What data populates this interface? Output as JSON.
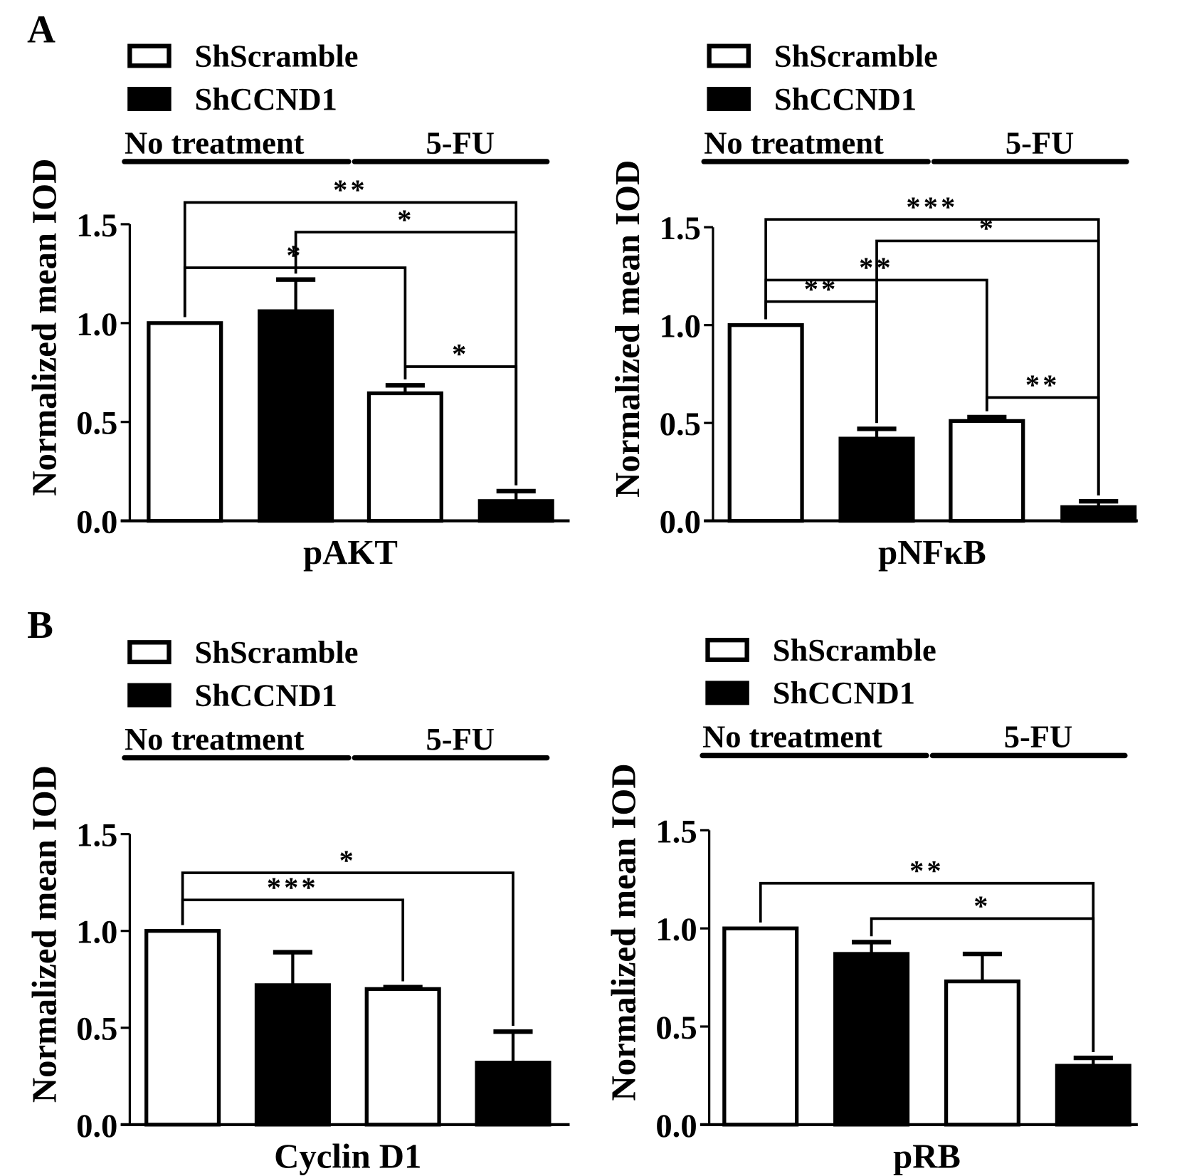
{
  "panel_labels": [
    "A",
    "B"
  ],
  "chart_data": [
    {
      "type": "bar",
      "panel": "A",
      "title": "",
      "xlabel": "pAKT",
      "ylabel": "Normalized mean IOD",
      "ylim": [
        0,
        1.5
      ],
      "yticks": [
        "0.0",
        "0.5",
        "1.0",
        "1.5"
      ],
      "legend": [
        "ShScramble",
        "ShCCND1"
      ],
      "legend_position": "top-left",
      "groups": [
        "No treatment",
        "5-FU"
      ],
      "categories": [
        "ShScramble / No treatment",
        "ShCCND1 / No treatment",
        "ShScramble / 5-FU",
        "ShCCND1 / 5-FU"
      ],
      "values": [
        1.0,
        1.06,
        0.645,
        0.1
      ],
      "errors": [
        0,
        0.16,
        0.04,
        0.05
      ],
      "fills": [
        "#ffffff",
        "#000000",
        "#ffffff",
        "#000000"
      ],
      "significance": [
        {
          "pair": [
            1,
            4
          ],
          "label": "**"
        },
        {
          "pair": [
            2,
            4
          ],
          "label": "*"
        },
        {
          "pair": [
            1,
            3
          ],
          "label": "*"
        },
        {
          "pair": [
            3,
            4
          ],
          "label": "*"
        }
      ]
    },
    {
      "type": "bar",
      "panel": "A",
      "title": "",
      "xlabel": "pNFκB",
      "ylabel": "Normalized mean IOD",
      "ylim": [
        0,
        1.5
      ],
      "yticks": [
        "0.0",
        "0.5",
        "1.0",
        "1.5"
      ],
      "legend": [
        "ShScramble",
        "ShCCND1"
      ],
      "legend_position": "top-left",
      "groups": [
        "No treatment",
        "5-FU"
      ],
      "categories": [
        "ShScramble / No treatment",
        "ShCCND1 / No treatment",
        "ShScramble / 5-FU",
        "ShCCND1 / 5-FU"
      ],
      "values": [
        1.0,
        0.42,
        0.51,
        0.07
      ],
      "errors": [
        0,
        0.05,
        0.02,
        0.03
      ],
      "fills": [
        "#ffffff",
        "#000000",
        "#ffffff",
        "#000000"
      ],
      "significance": [
        {
          "pair": [
            1,
            4
          ],
          "label": "***"
        },
        {
          "pair": [
            2,
            4
          ],
          "label": "*"
        },
        {
          "pair": [
            1,
            3
          ],
          "label": "**"
        },
        {
          "pair": [
            1,
            2
          ],
          "label": "**"
        },
        {
          "pair": [
            3,
            4
          ],
          "label": "**"
        }
      ]
    },
    {
      "type": "bar",
      "panel": "B",
      "title": "",
      "xlabel": "Cyclin D1",
      "ylabel": "Normalized mean IOD",
      "ylim": [
        0,
        1.5
      ],
      "yticks": [
        "0.0",
        "0.5",
        "1.0",
        "1.5"
      ],
      "legend": [
        "ShScramble",
        "ShCCND1"
      ],
      "legend_position": "top-left",
      "groups": [
        "No treatment",
        "5-FU"
      ],
      "categories": [
        "ShScramble / No treatment",
        "ShCCND1 / No treatment",
        "ShScramble / 5-FU",
        "ShCCND1 / 5-FU"
      ],
      "values": [
        1.0,
        0.72,
        0.7,
        0.32
      ],
      "errors": [
        0,
        0.17,
        0.01,
        0.16
      ],
      "fills": [
        "#ffffff",
        "#000000",
        "#ffffff",
        "#000000"
      ],
      "significance": [
        {
          "pair": [
            1,
            4
          ],
          "label": "*"
        },
        {
          "pair": [
            1,
            3
          ],
          "label": "***"
        }
      ]
    },
    {
      "type": "bar",
      "panel": "B",
      "title": "",
      "xlabel": "pRB",
      "ylabel": "Normalized mean IOD",
      "ylim": [
        0,
        1.5
      ],
      "yticks": [
        "0.0",
        "0.5",
        "1.0",
        "1.5"
      ],
      "legend": [
        "ShScramble",
        "ShCCND1"
      ],
      "legend_position": "top-left",
      "groups": [
        "No treatment",
        "5-FU"
      ],
      "categories": [
        "ShScramble / No treatment",
        "ShCCND1 / No treatment",
        "ShScramble / 5-FU",
        "ShCCND1 / 5-FU"
      ],
      "values": [
        1.0,
        0.87,
        0.73,
        0.3
      ],
      "errors": [
        0,
        0.06,
        0.14,
        0.04
      ],
      "fills": [
        "#ffffff",
        "#000000",
        "#ffffff",
        "#000000"
      ],
      "significance": [
        {
          "pair": [
            1,
            4
          ],
          "label": "**"
        },
        {
          "pair": [
            2,
            4
          ],
          "label": "*"
        }
      ]
    }
  ]
}
